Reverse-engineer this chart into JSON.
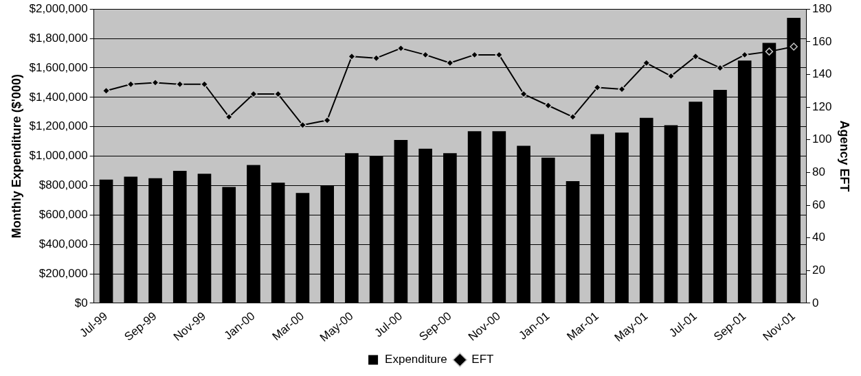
{
  "chart_data": {
    "type": "bar",
    "categories": [
      "Jul-99",
      null,
      "Sep-99",
      null,
      "Nov-99",
      null,
      "Jan-00",
      null,
      "Mar-00",
      null,
      "May-00",
      null,
      "Jul-00",
      null,
      "Sep-00",
      null,
      "Nov-00",
      null,
      "Jan-01",
      null,
      "Mar-01",
      null,
      "May-01",
      null,
      "Jul-01",
      null,
      "Sep-01",
      null,
      "Nov-01"
    ],
    "series": [
      {
        "name": "Expenditure",
        "color": "#000000",
        "values": [
          840000,
          860000,
          850000,
          900000,
          880000,
          790000,
          940000,
          820000,
          750000,
          800000,
          1020000,
          1000000,
          1110000,
          1050000,
          1020000,
          1170000,
          1170000,
          1070000,
          990000,
          830000,
          1150000,
          1160000,
          1260000,
          1210000,
          1370000,
          1450000,
          1650000,
          1770000,
          1940000
        ]
      },
      {
        "name": "EFT",
        "type": "line",
        "axis": "y2",
        "color": "#000000",
        "values": [
          130,
          134,
          135,
          134,
          134,
          114,
          128,
          128,
          109,
          112,
          151,
          150,
          156,
          152,
          147,
          152,
          152,
          128,
          121,
          114,
          132,
          131,
          147,
          139,
          151,
          144,
          152,
          154,
          157
        ]
      }
    ],
    "ylabel": "Monthly Expenditure ($'000)",
    "y2label": "Agency EFT",
    "ylim": [
      0,
      2000000
    ],
    "yticks": [
      {
        "value": 0,
        "label": "$0"
      },
      {
        "value": 200000,
        "label": "$200,000"
      },
      {
        "value": 400000,
        "label": "$400,000"
      },
      {
        "value": 600000,
        "label": "$600,000"
      },
      {
        "value": 800000,
        "label": "$800,000"
      },
      {
        "value": 1000000,
        "label": "$1,000,000"
      },
      {
        "value": 1200000,
        "label": "$1,200,000"
      },
      {
        "value": 1400000,
        "label": "$1,400,000"
      },
      {
        "value": 1600000,
        "label": "$1,600,000"
      },
      {
        "value": 1800000,
        "label": "$1,800,000"
      },
      {
        "value": 2000000,
        "label": "$2,000,000"
      }
    ],
    "y2lim": [
      0,
      180
    ],
    "y2ticks": [
      0,
      20,
      40,
      60,
      80,
      100,
      120,
      140,
      160,
      180
    ],
    "grid": "y",
    "legend": "bottom",
    "marker": "diamond",
    "line_style": "solid"
  }
}
